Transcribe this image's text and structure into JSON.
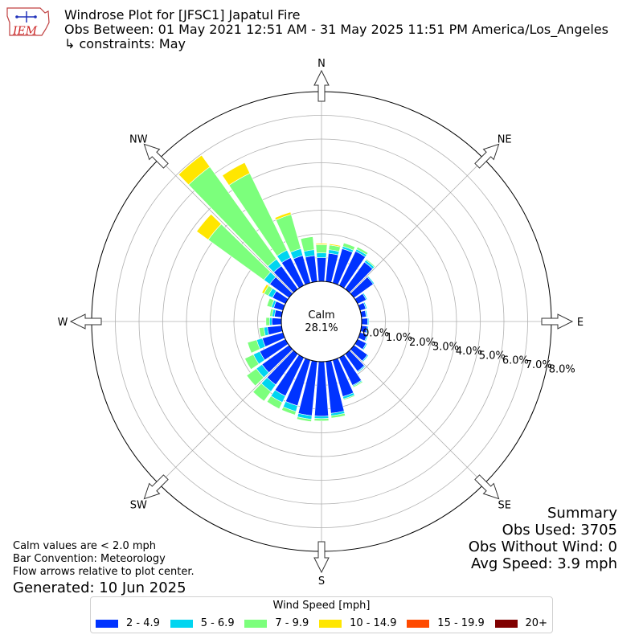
{
  "header": {
    "title": "Windrose Plot for [JFSC1] Japatul Fire",
    "obs_between": "Obs Between: 01 May 2021 12:51 AM - 31 May 2025 11:51 PM America/Los_Angeles",
    "constraints": "↳ constraints: May",
    "logo_text": "IEM"
  },
  "notes": {
    "calm_note": "Calm values are < 2.0 mph",
    "bar_convention": "Bar Convention: Meteorology",
    "flow_arrows": "Flow arrows relative to plot center.",
    "generated": "Generated: 10 Jun 2025"
  },
  "summary": {
    "title": "Summary",
    "obs_used": "Obs Used: 3705",
    "obs_without_wind": "Obs Without Wind: 0",
    "avg_speed": "Avg Speed: 3.9 mph"
  },
  "legend": {
    "title": "Wind Speed [mph]",
    "items": [
      {
        "label": "2 - 4.9",
        "color": "#0033ff"
      },
      {
        "label": "5 - 6.9",
        "color": "#00d5f0"
      },
      {
        "label": "7 - 9.9",
        "color": "#7cff7c"
      },
      {
        "label": "10 - 14.9",
        "color": "#ffe600"
      },
      {
        "label": "15 - 19.9",
        "color": "#ff4a00"
      },
      {
        "label": "20+",
        "color": "#800000"
      }
    ]
  },
  "chart_data": {
    "type": "windrose",
    "calm_label": "Calm",
    "calm_value": "28.1%",
    "calm_percent": 28.1,
    "radial_max": 8.0,
    "radial_ticks": [
      0,
      1,
      2,
      3,
      4,
      5,
      6,
      7,
      8
    ],
    "radial_tick_labels": [
      "0.0%",
      "1.0%",
      "2.0%",
      "3.0%",
      "4.0%",
      "5.0%",
      "6.0%",
      "7.0%",
      "8.0%"
    ],
    "compass_labels": [
      {
        "label": "N",
        "angle": 0
      },
      {
        "label": "NE",
        "angle": 45
      },
      {
        "label": "E",
        "angle": 90
      },
      {
        "label": "SE",
        "angle": 135
      },
      {
        "label": "S",
        "angle": 180
      },
      {
        "label": "SW",
        "angle": 225
      },
      {
        "label": "W",
        "angle": 270
      },
      {
        "label": "NW",
        "angle": 315
      }
    ],
    "speed_bins": [
      "2 - 4.9",
      "5 - 6.9",
      "7 - 9.9",
      "10 - 14.9",
      "15 - 19.9",
      "20+"
    ],
    "directions": [
      0,
      10,
      20,
      30,
      40,
      50,
      60,
      70,
      80,
      90,
      100,
      110,
      120,
      130,
      140,
      150,
      160,
      170,
      180,
      190,
      200,
      210,
      220,
      230,
      240,
      250,
      260,
      270,
      280,
      290,
      300,
      310,
      320,
      330,
      340,
      350
    ],
    "series": [
      {
        "name": "2 - 4.9",
        "values": [
          1.0,
          1.2,
          1.5,
          1.6,
          1.4,
          1.0,
          0.4,
          0.25,
          0.2,
          0.25,
          0.25,
          0.3,
          0.4,
          0.7,
          0.9,
          1.3,
          1.6,
          2.2,
          2.3,
          2.3,
          2.0,
          1.8,
          1.6,
          1.4,
          1.2,
          0.9,
          0.6,
          0.4,
          0.3,
          0.4,
          0.6,
          1.0,
          1.2,
          1.3,
          1.2,
          1.1
        ],
        "color": "#0033ff"
      },
      {
        "name": "5 - 6.9",
        "values": [
          0.2,
          0.15,
          0.1,
          0.1,
          0.1,
          0.05,
          0.05,
          0.05,
          0.05,
          0.05,
          0.05,
          0.05,
          0.05,
          0.05,
          0.05,
          0.05,
          0.1,
          0.1,
          0.1,
          0.15,
          0.25,
          0.3,
          0.35,
          0.3,
          0.3,
          0.25,
          0.15,
          0.1,
          0.1,
          0.1,
          0.2,
          0.3,
          0.35,
          0.35,
          0.3,
          0.25
        ],
        "color": "#00d5f0"
      },
      {
        "name": "7 - 9.9",
        "values": [
          0.35,
          0.2,
          0.15,
          0.1,
          0.05,
          0.0,
          0.0,
          0.0,
          0.0,
          0.0,
          0.0,
          0.0,
          0.0,
          0.0,
          0.0,
          0.05,
          0.05,
          0.1,
          0.1,
          0.1,
          0.15,
          0.3,
          0.5,
          0.5,
          0.4,
          0.4,
          0.2,
          0.15,
          0.1,
          0.2,
          0.2,
          2.9,
          4.8,
          3.6,
          1.5,
          0.55
        ],
        "color": "#7cff7c"
      },
      {
        "name": "10 - 14.9",
        "values": [
          0.05,
          0.05,
          0.0,
          0.0,
          0.0,
          0.0,
          0.0,
          0.0,
          0.0,
          0.0,
          0.0,
          0.0,
          0.0,
          0.0,
          0.0,
          0.0,
          0.0,
          0.0,
          0.0,
          0.0,
          0.0,
          0.0,
          0.0,
          0.0,
          0.0,
          0.0,
          0.0,
          0.0,
          0.0,
          0.0,
          0.1,
          0.6,
          0.6,
          0.5,
          0.1,
          0.0
        ],
        "color": "#ffe600"
      },
      {
        "name": "15 - 19.9",
        "values": [
          0,
          0,
          0,
          0,
          0,
          0,
          0,
          0,
          0,
          0,
          0,
          0,
          0,
          0,
          0,
          0,
          0,
          0,
          0,
          0,
          0,
          0,
          0,
          0,
          0,
          0,
          0,
          0,
          0,
          0,
          0,
          0,
          0,
          0,
          0,
          0
        ],
        "color": "#ff4a00"
      },
      {
        "name": "20+",
        "values": [
          0,
          0,
          0,
          0,
          0,
          0,
          0,
          0,
          0,
          0,
          0,
          0,
          0,
          0,
          0,
          0,
          0,
          0,
          0,
          0,
          0,
          0,
          0,
          0,
          0,
          0,
          0,
          0,
          0,
          0,
          0,
          0,
          0,
          0,
          0,
          0
        ],
        "color": "#800000"
      }
    ],
    "grid": true
  }
}
